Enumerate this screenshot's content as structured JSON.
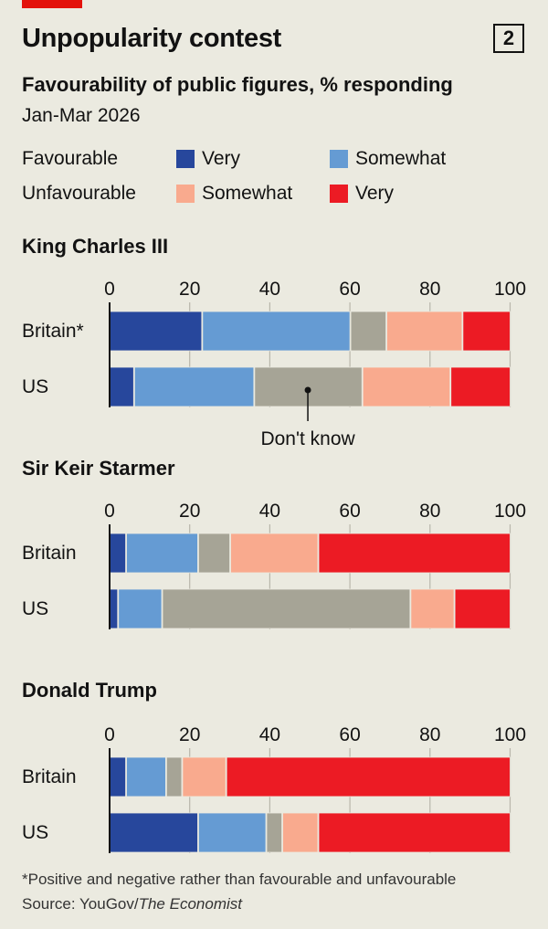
{
  "title": "Unpopularity contest",
  "chart_number": "2",
  "subtitle": "Favourability of public figures, % responding",
  "period": "Jan-Mar 2026",
  "legend": {
    "favourable_label": "Favourable",
    "unfavourable_label": "Unfavourable",
    "items": [
      {
        "label": "Very",
        "color": "#27479c"
      },
      {
        "label": "Somewhat",
        "color": "#659bd3"
      },
      {
        "label": "Somewhat",
        "color": "#f9aa8e"
      },
      {
        "label": "Very",
        "color": "#ec1b24"
      }
    ]
  },
  "dont_know_label": "Don't know",
  "dont_know_color": "#a6a496",
  "footnote": "*Positive and negative rather than favourable and unfavourable",
  "source_prefix": "Source: YouGov/",
  "source_italic": "The Economist",
  "chart_data": {
    "type": "bar",
    "stacked": true,
    "orientation": "horizontal",
    "xlim": [
      0,
      100
    ],
    "ticks": [
      "0",
      "20",
      "40",
      "60",
      "80",
      "100"
    ],
    "segments": [
      "Favourable: Very",
      "Favourable: Somewhat",
      "Don't know",
      "Unfavourable: Somewhat",
      "Unfavourable: Very"
    ],
    "groups": [
      {
        "title": "King Charles III",
        "rows": [
          {
            "label": "Britain*",
            "values": [
              23,
              37,
              9,
              19,
              12
            ]
          },
          {
            "label": "US",
            "values": [
              6,
              30,
              27,
              22,
              15
            ]
          }
        ]
      },
      {
        "title": "Sir Keir Starmer",
        "rows": [
          {
            "label": "Britain",
            "values": [
              4,
              18,
              8,
              22,
              48
            ]
          },
          {
            "label": "US",
            "values": [
              2,
              11,
              62,
              11,
              14
            ]
          }
        ]
      },
      {
        "title": "Donald Trump",
        "rows": [
          {
            "label": "Britain",
            "values": [
              4,
              10,
              4,
              11,
              71
            ]
          },
          {
            "label": "US",
            "values": [
              22,
              17,
              4,
              9,
              48
            ]
          }
        ]
      }
    ]
  }
}
